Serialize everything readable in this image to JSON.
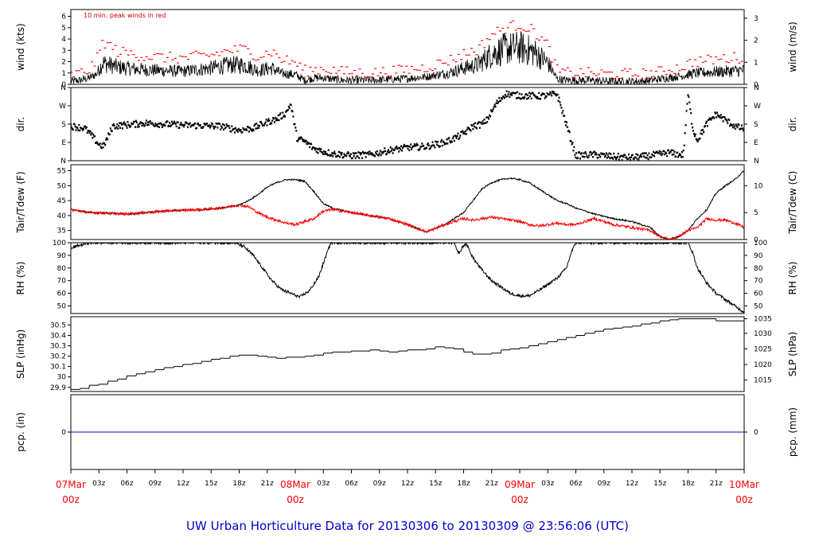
{
  "title": "UW Urban Horticulture Data for 20130306  to  20130309 @ 23:56:06  (UTC)",
  "colors": {
    "primary": "#000000",
    "secondary": "#ff0000",
    "precip": "#0000cc",
    "title": "#0000cc"
  },
  "time_axis": {
    "hours_total": 72,
    "ticks": [
      {
        "h": 0,
        "label": "07Mar",
        "sub": "00z",
        "major": true
      },
      {
        "h": 3,
        "label": "03z"
      },
      {
        "h": 6,
        "label": "06z"
      },
      {
        "h": 9,
        "label": "09z"
      },
      {
        "h": 12,
        "label": "12z"
      },
      {
        "h": 15,
        "label": "15z"
      },
      {
        "h": 18,
        "label": "18z"
      },
      {
        "h": 21,
        "label": "21z"
      },
      {
        "h": 24,
        "label": "08Mar",
        "sub": "00z",
        "major": true
      },
      {
        "h": 27,
        "label": "03z"
      },
      {
        "h": 30,
        "label": "06z"
      },
      {
        "h": 33,
        "label": "09z"
      },
      {
        "h": 36,
        "label": "12z"
      },
      {
        "h": 39,
        "label": "15z"
      },
      {
        "h": 42,
        "label": "18z"
      },
      {
        "h": 45,
        "label": "21z"
      },
      {
        "h": 48,
        "label": "09Mar",
        "sub": "00z",
        "major": true
      },
      {
        "h": 51,
        "label": "03z"
      },
      {
        "h": 54,
        "label": "06z"
      },
      {
        "h": 57,
        "label": "09z"
      },
      {
        "h": 60,
        "label": "12z"
      },
      {
        "h": 63,
        "label": "15z"
      },
      {
        "h": 66,
        "label": "18z"
      },
      {
        "h": 69,
        "label": "21z"
      },
      {
        "h": 72,
        "label": "10Mar",
        "sub": "00z",
        "major": true
      }
    ]
  },
  "chart_data": [
    {
      "type": "line",
      "id": "wind",
      "ylabel": "wind (kts)",
      "ylabel_right": "wind (m/s)",
      "ylim": [
        0,
        6.6
      ],
      "yticks": [
        0,
        1,
        2,
        3,
        4,
        5,
        6
      ],
      "right_ticks": [
        {
          "v": 0,
          "label": "0"
        },
        {
          "v": 1.944,
          "label": "1"
        },
        {
          "v": 3.888,
          "label": "2"
        },
        {
          "v": 5.832,
          "label": "3"
        }
      ],
      "annotation": "10 min. peak winds in red",
      "series": [
        {
          "name": "wind",
          "style": "line",
          "color": "#000000",
          "x": [
            0,
            1,
            2,
            2.8,
            3.4,
            5,
            7,
            9,
            12,
            15,
            17,
            18.5,
            20,
            21.5,
            22.5,
            24,
            25,
            26,
            27,
            29,
            32,
            35,
            38,
            40,
            41,
            42,
            43.5,
            45,
            46.5,
            48,
            49.5,
            51,
            52,
            53,
            55,
            58,
            61,
            63,
            65.5,
            66.5,
            68,
            70,
            72
          ],
          "y": [
            0.3,
            0.4,
            0.6,
            1.0,
            2.0,
            1.6,
            1.4,
            1.3,
            1.2,
            1.5,
            1.8,
            1.8,
            1.3,
            1.5,
            1.0,
            0.9,
            0.4,
            0.6,
            0.6,
            0.4,
            0.4,
            0.5,
            0.7,
            1.0,
            1.2,
            1.5,
            1.8,
            2.8,
            3.3,
            3.4,
            3.0,
            2.0,
            0.5,
            0.4,
            0.4,
            0.3,
            0.3,
            0.5,
            0.8,
            1.0,
            1.1,
            1.2,
            1.3
          ],
          "noise": 0.9
        },
        {
          "name": "10 min. peak winds",
          "style": "dots",
          "color": "#ff0000",
          "x": [
            0,
            1,
            2,
            2.8,
            3.4,
            5,
            7,
            9,
            12,
            15,
            17,
            18.5,
            20,
            21.5,
            22.5,
            24,
            25,
            26,
            27,
            29,
            32,
            35,
            38,
            40,
            41,
            42,
            43.5,
            45,
            46.5,
            48,
            49.5,
            51,
            52,
            53,
            55,
            58,
            61,
            63,
            65.5,
            66.5,
            68,
            70,
            72
          ],
          "y": [
            0.8,
            1.0,
            1.3,
            2.3,
            3.8,
            2.9,
            2.6,
            2.4,
            2.3,
            2.6,
            3.0,
            3.1,
            2.5,
            2.9,
            2.2,
            1.9,
            1.2,
            1.3,
            1.4,
            1.1,
            1.0,
            1.2,
            1.5,
            2.0,
            2.3,
            2.7,
            3.1,
            4.4,
            5.0,
            5.3,
            4.7,
            3.4,
            1.2,
            1.0,
            1.0,
            0.9,
            0.9,
            1.1,
            1.6,
            2.0,
            2.1,
            2.3,
            2.4
          ],
          "noise": 0.5
        }
      ]
    },
    {
      "type": "scatter",
      "id": "dir",
      "ylabel": "dir.",
      "ylabel_right": "dir.",
      "ylim": [
        0,
        360
      ],
      "yticks": [
        0,
        90,
        180,
        270,
        360
      ],
      "ytick_labels": [
        "N",
        "E",
        "S",
        "W",
        "N"
      ],
      "series": [
        {
          "name": "direction",
          "color": "#000000",
          "x": [
            0,
            1.5,
            2.3,
            3,
            3.5,
            4.5,
            8,
            12,
            16,
            18,
            19.5,
            21,
            22,
            23,
            23.5,
            24.2,
            25,
            26,
            27,
            28,
            30,
            32,
            34,
            36,
            38,
            40,
            41.5,
            42.5,
            43,
            44,
            44.5,
            45.5,
            46.5,
            48,
            50,
            51,
            52,
            54,
            56,
            58,
            60,
            62,
            64,
            65,
            65.5,
            66,
            66.5,
            67,
            68,
            69,
            70,
            71,
            72
          ],
          "y": [
            170,
            160,
            120,
            80,
            70,
            170,
            185,
            175,
            170,
            150,
            160,
            190,
            205,
            235,
            280,
            110,
            95,
            60,
            45,
            35,
            25,
            30,
            50,
            65,
            70,
            90,
            120,
            150,
            170,
            180,
            200,
            280,
            330,
            320,
            318,
            320,
            330,
            25,
            30,
            20,
            15,
            25,
            40,
            30,
            30,
            330,
            160,
            100,
            180,
            230,
            200,
            170,
            155
          ],
          "noise": 16
        }
      ]
    },
    {
      "type": "line",
      "id": "temp",
      "ylabel": "Tair/Tdew (F)",
      "ylabel_right": "Tair/Tdew (C)",
      "ylim": [
        32,
        57
      ],
      "yticks": [
        35,
        40,
        45,
        50,
        55
      ],
      "right_ticks": [
        {
          "v": 32,
          "label": "0"
        },
        {
          "v": 41,
          "label": "5"
        },
        {
          "v": 50,
          "label": "10"
        }
      ],
      "series": [
        {
          "name": "Tair",
          "color": "#000000",
          "x": [
            0,
            2,
            4,
            6,
            8,
            10,
            12,
            14,
            16,
            18,
            19,
            20,
            21,
            22,
            23,
            24,
            25,
            26,
            27,
            28,
            30,
            32,
            34,
            36,
            38,
            40,
            41,
            42,
            43,
            44,
            45,
            46,
            47,
            48,
            49,
            50,
            51,
            52,
            53,
            54,
            56,
            58,
            60,
            62,
            63,
            64,
            65,
            66,
            67,
            68,
            69,
            70,
            71,
            72
          ],
          "y": [
            42,
            41,
            40.8,
            40.5,
            41,
            41.5,
            41.8,
            42,
            42.5,
            43.5,
            45,
            47,
            49.5,
            51,
            52,
            52,
            51.5,
            48,
            44,
            42.5,
            41,
            40,
            39,
            37,
            34.5,
            37,
            39,
            41,
            45,
            49,
            51,
            52,
            52.5,
            52,
            51,
            49,
            47,
            45,
            44,
            42.5,
            40.5,
            39,
            38,
            36,
            33,
            32,
            33,
            35,
            39,
            42,
            47.5,
            50,
            52,
            55
          ],
          "noise": 0.25
        },
        {
          "name": "Tdew",
          "color": "#ff0000",
          "x": [
            0,
            2,
            4,
            6,
            8,
            10,
            12,
            14,
            16,
            18,
            19,
            20,
            21,
            22,
            23,
            24,
            25,
            26,
            27,
            28,
            30,
            32,
            34,
            36,
            38,
            40,
            41,
            42,
            43,
            44,
            45,
            46,
            47,
            48,
            49,
            50,
            51,
            52,
            53,
            54,
            56,
            58,
            60,
            62,
            63,
            64,
            65,
            66,
            67,
            68,
            69,
            70,
            71,
            72
          ],
          "y": [
            42,
            41,
            40.8,
            40.5,
            41,
            41.5,
            41.8,
            42,
            42.5,
            43.5,
            43,
            41,
            39.5,
            38.5,
            37.5,
            37,
            38,
            39,
            41.5,
            42,
            41,
            40,
            39,
            37,
            34.5,
            37,
            38,
            39,
            38.5,
            39,
            39.5,
            39,
            38.5,
            38,
            37,
            36.5,
            37,
            37.5,
            37,
            37,
            39,
            37,
            36,
            35,
            33,
            32,
            33,
            35,
            36,
            39,
            38.5,
            38.5,
            37.5,
            36
          ],
          "noise": 0.45
        }
      ]
    },
    {
      "type": "line",
      "id": "rh",
      "ylabel": "RH (%)",
      "ylabel_right": "RH (%)",
      "ylim": [
        44,
        100
      ],
      "yticks": [
        50,
        60,
        70,
        80,
        90,
        100
      ],
      "series": [
        {
          "name": "RH",
          "color": "#000000",
          "x": [
            0,
            0.5,
            1.5,
            2,
            17.5,
            18.5,
            19.5,
            20.5,
            21.5,
            22.5,
            23.5,
            24.5,
            25.5,
            26.5,
            27.3,
            27.8,
            41,
            41.3,
            41.6,
            41.9,
            42.3,
            43,
            44,
            45,
            46,
            47,
            48,
            49,
            50,
            51,
            52,
            53,
            53.5,
            54,
            66,
            66.5,
            67,
            68,
            69,
            70,
            71,
            72
          ],
          "y": [
            95,
            97,
            99,
            100,
            100,
            97,
            90,
            80,
            70,
            63,
            60,
            57,
            62,
            73,
            90,
            100,
            100,
            93,
            92,
            97,
            99,
            88,
            78,
            70,
            65,
            60,
            58,
            58,
            62,
            67,
            72,
            80,
            92,
            100,
            100,
            92,
            80,
            68,
            60,
            55,
            50,
            45
          ],
          "noise": 1.2
        }
      ]
    },
    {
      "type": "line",
      "id": "slp",
      "ylabel": "SLP (inHg)",
      "ylabel_right": "SLP (hPa)",
      "ylim": [
        29.86,
        30.58
      ],
      "yticks": [
        29.9,
        30.0,
        30.1,
        30.2,
        30.3,
        30.4,
        30.5
      ],
      "right_ticks": [
        {
          "v": 29.97,
          "label": "1015"
        },
        {
          "v": 30.12,
          "label": "1020"
        },
        {
          "v": 30.27,
          "label": "1025"
        },
        {
          "v": 30.42,
          "label": "1030"
        },
        {
          "v": 30.56,
          "label": "1035"
        }
      ],
      "series": [
        {
          "name": "SLP",
          "color": "#000000",
          "step": true,
          "x": [
            0,
            1,
            2,
            3,
            4,
            5,
            6,
            7,
            8,
            9,
            10,
            11,
            12,
            13,
            14,
            15,
            16,
            17,
            18,
            20,
            21,
            22,
            23,
            24,
            25,
            26,
            27,
            28,
            29,
            30,
            31,
            32,
            33,
            34,
            35,
            36,
            37,
            38,
            39,
            40,
            41,
            42,
            43,
            44,
            45,
            46,
            47,
            48,
            49,
            50,
            51,
            52,
            53,
            54,
            55,
            56,
            57,
            58,
            59,
            60,
            61,
            62,
            63,
            64,
            65,
            66,
            67,
            68,
            69,
            70,
            71,
            72
          ],
          "y": [
            29.88,
            29.89,
            29.92,
            29.93,
            29.96,
            29.98,
            30.01,
            30.03,
            30.05,
            30.07,
            30.09,
            30.1,
            30.12,
            30.13,
            30.15,
            30.17,
            30.18,
            30.2,
            30.21,
            30.2,
            30.19,
            30.18,
            30.19,
            30.19,
            30.2,
            30.21,
            30.23,
            30.24,
            30.24,
            30.25,
            30.25,
            30.26,
            30.25,
            30.24,
            30.25,
            30.26,
            30.26,
            30.27,
            30.29,
            30.28,
            30.27,
            30.24,
            30.22,
            30.22,
            30.23,
            30.26,
            30.27,
            30.28,
            30.3,
            30.32,
            30.34,
            30.36,
            30.38,
            30.4,
            30.42,
            30.44,
            30.46,
            30.47,
            30.48,
            30.49,
            30.51,
            30.52,
            30.54,
            30.55,
            30.56,
            30.56,
            30.56,
            30.56,
            30.54,
            30.54,
            30.54,
            30.54
          ],
          "noise": 0
        }
      ]
    },
    {
      "type": "line",
      "id": "pcp",
      "ylabel": "pcp. (in)",
      "ylabel_right": "pcp. (mm)",
      "ylim": [
        -1,
        1
      ],
      "yticks": [
        0
      ],
      "ytick_labels": [
        "0"
      ],
      "right_ticks": [
        {
          "v": 0,
          "label": "0"
        }
      ],
      "series": [
        {
          "name": "precip",
          "color": "#0000cc",
          "x": [
            0,
            72
          ],
          "y": [
            0,
            0
          ],
          "noise": 0
        }
      ]
    }
  ]
}
